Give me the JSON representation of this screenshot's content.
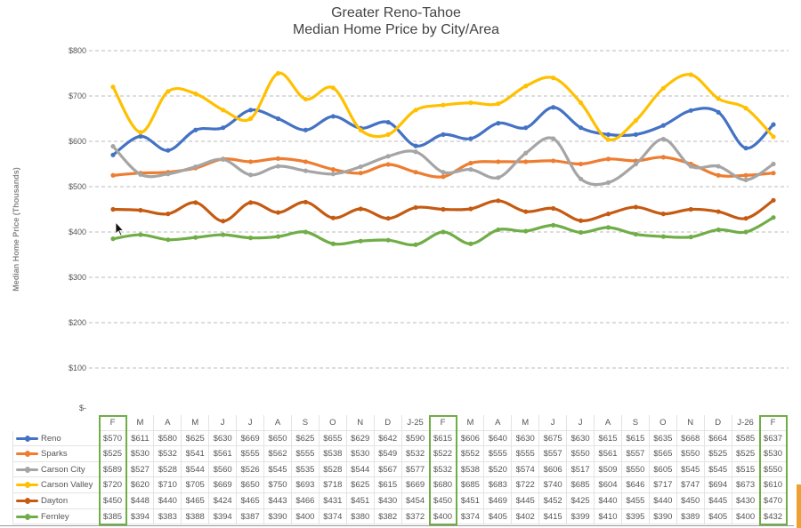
{
  "chart_data": {
    "type": "line",
    "title": "Greater Reno-Tahoe",
    "subtitle": "Median Home Price by City/Area",
    "ylabel": "Median Home Price (Thousands)",
    "xlabel": "",
    "ylim": [
      0,
      800
    ],
    "yticks": [
      800,
      700,
      600,
      500,
      400,
      300,
      200,
      100,
      0
    ],
    "ytick_labels": [
      "$800",
      "$700",
      "$600",
      "$500",
      "$400",
      "$300",
      "$200",
      "$100",
      "$-"
    ],
    "grid": true,
    "legend": "bottom data table",
    "categories": [
      "F",
      "M",
      "A",
      "M",
      "J",
      "J",
      "A",
      "S",
      "O",
      "N",
      "D",
      "J-25",
      "F",
      "M",
      "A",
      "M",
      "J",
      "J",
      "A",
      "S",
      "O",
      "N",
      "D",
      "J-26",
      "F"
    ],
    "highlighted_columns": [
      0,
      12,
      24
    ],
    "series": [
      {
        "name": "Reno",
        "color": "#4472C4",
        "values": [
          570,
          611,
          580,
          625,
          630,
          669,
          650,
          625,
          655,
          629,
          642,
          590,
          615,
          606,
          640,
          630,
          675,
          630,
          615,
          615,
          635,
          668,
          664,
          585,
          637
        ]
      },
      {
        "name": "Sparks",
        "color": "#ED7D31",
        "values": [
          525,
          530,
          532,
          541,
          561,
          555,
          562,
          555,
          538,
          530,
          549,
          532,
          522,
          552,
          555,
          555,
          557,
          550,
          561,
          557,
          565,
          550,
          525,
          525,
          530
        ]
      },
      {
        "name": "Carson City",
        "color": "#A5A5A5",
        "values": [
          589,
          527,
          528,
          544,
          560,
          526,
          545,
          535,
          528,
          544,
          567,
          577,
          532,
          538,
          520,
          574,
          606,
          517,
          509,
          550,
          605,
          545,
          545,
          515,
          550
        ]
      },
      {
        "name": "Carson Valley",
        "color": "#FFC000",
        "values": [
          720,
          620,
          710,
          705,
          669,
          650,
          750,
          693,
          718,
          625,
          615,
          669,
          680,
          685,
          683,
          722,
          740,
          685,
          604,
          646,
          717,
          747,
          694,
          673,
          610
        ]
      },
      {
        "name": "Dayton",
        "color": "#C55A11",
        "values": [
          450,
          448,
          440,
          465,
          424,
          465,
          443,
          466,
          431,
          451,
          430,
          454,
          450,
          451,
          469,
          445,
          452,
          425,
          440,
          455,
          440,
          450,
          445,
          430,
          470
        ]
      },
      {
        "name": "Fernley",
        "color": "#70AD47",
        "values": [
          385,
          394,
          383,
          388,
          394,
          387,
          390,
          400,
          374,
          380,
          382,
          372,
          400,
          374,
          405,
          402,
          415,
          399,
          410,
          395,
          390,
          389,
          405,
          400,
          432
        ]
      }
    ]
  }
}
